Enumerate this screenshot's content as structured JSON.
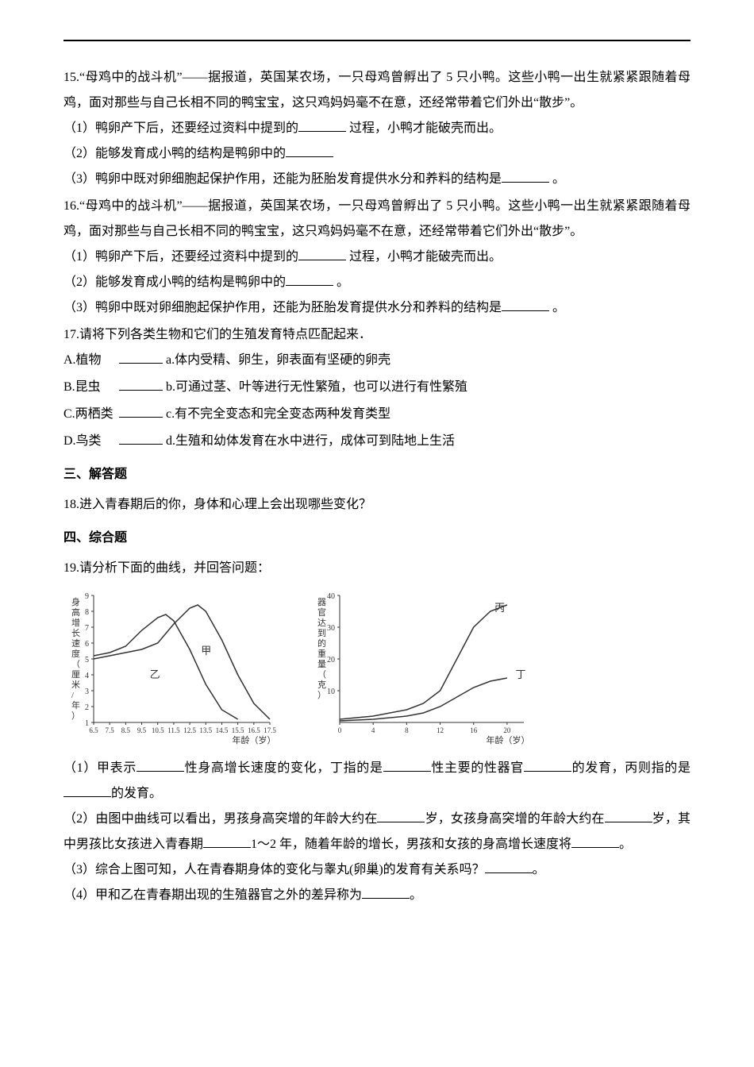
{
  "q15": {
    "num": "15.",
    "stem": "“母鸡中的战斗机”——据报道，英国某农场，一只母鸡曾孵出了 5 只小鸭。这些小鸭一出生就紧紧跟随着母鸡，面对那些与自己长相不同的鸭宝宝，这只鸡妈妈毫不在意，还经常带着它们外出“散步”。",
    "sub1_a": "（1）鸭卵产下后，还要经过资料中提到的",
    "sub1_b": " 过程，小鸭才能破壳而出。",
    "sub2_a": "（2）能够发育成小鸭的结构是鸭卵中的",
    "sub3_a": "（3）鸭卵中既对卵细胞起保护作用，还能为胚胎发育提供水分和养料的结构是",
    "sub3_b": " 。"
  },
  "q16": {
    "num": "16.",
    "stem": "“母鸡中的战斗机”——据报道，英国某农场，一只母鸡曾孵出了 5 只小鸭。这些小鸭一出生就紧紧跟随着母鸡，面对那些与自己长相不同的鸭宝宝，这只鸡妈妈毫不在意，还经常带着它们外出“散步”。",
    "sub1_a": "（1）鸭卵产下后，还要经过资料中提到的",
    "sub1_b": " 过程，小鸭才能破壳而出。",
    "sub2_a": "（2）能够发育成小鸭的结构是鸭卵中的",
    "sub2_b": " 。",
    "sub3_a": "（3）鸭卵中既对卵细胞起保护作用，还能为胚胎发育提供水分和养料的结构是",
    "sub3_b": " 。"
  },
  "q17": {
    "num": "17.",
    "stem": "请将下列各类生物和它们的生殖发育特点匹配起来．",
    "opts": [
      {
        "letter": "A.植物",
        "match": "a.体内受精、卵生，卵表面有坚硬的卵壳"
      },
      {
        "letter": "B.昆虫",
        "match": "b.可通过茎、叶等进行无性繁殖，也可以进行有性繁殖"
      },
      {
        "letter": "C.两栖类",
        "match": "c.有不完全变态和完全变态两种发育类型"
      },
      {
        "letter": "D.鸟类",
        "match": "d.生殖和幼体发育在水中进行，成体可到陆地上生活"
      }
    ]
  },
  "section3": "三、解答题",
  "q18": {
    "num": "18.",
    "stem": "进入青春期后的你，身体和心理上会出现哪些变化？"
  },
  "section4": "四、综合题",
  "q19": {
    "num": "19.",
    "stem": "请分析下面的曲线，并回答问题：",
    "chart1": {
      "type": "line",
      "ylabel": "身高增长速度（厘米/年）",
      "xlabel": "年龄（岁）",
      "ylim": [
        1,
        9
      ],
      "yticks": [
        1,
        2,
        3,
        4,
        5,
        6,
        7,
        8,
        9
      ],
      "xlim": [
        6.5,
        17.5
      ],
      "xticks": [
        6.5,
        7.5,
        8.5,
        9.5,
        10.5,
        11.5,
        12.5,
        13.5,
        14.5,
        15.5,
        16.5,
        17.5
      ],
      "series": [
        {
          "label": "甲",
          "label_pos": {
            "x": 13.2,
            "y": 5.3
          },
          "data": [
            {
              "x": 6.5,
              "y": 5.0
            },
            {
              "x": 7.5,
              "y": 5.2
            },
            {
              "x": 8.5,
              "y": 5.4
            },
            {
              "x": 9.5,
              "y": 5.6
            },
            {
              "x": 10.5,
              "y": 6.0
            },
            {
              "x": 11.5,
              "y": 7.2
            },
            {
              "x": 12.5,
              "y": 8.2
            },
            {
              "x": 13.0,
              "y": 8.4
            },
            {
              "x": 13.5,
              "y": 8.0
            },
            {
              "x": 14.5,
              "y": 6.2
            },
            {
              "x": 15.5,
              "y": 4.0
            },
            {
              "x": 16.5,
              "y": 2.2
            },
            {
              "x": 17.5,
              "y": 1.2
            }
          ]
        },
        {
          "label": "乙",
          "label_pos": {
            "x": 10.0,
            "y": 3.8
          },
          "data": [
            {
              "x": 6.5,
              "y": 5.2
            },
            {
              "x": 7.5,
              "y": 5.4
            },
            {
              "x": 8.5,
              "y": 5.8
            },
            {
              "x": 9.5,
              "y": 6.8
            },
            {
              "x": 10.5,
              "y": 7.6
            },
            {
              "x": 11.0,
              "y": 7.8
            },
            {
              "x": 11.5,
              "y": 7.4
            },
            {
              "x": 12.5,
              "y": 5.6
            },
            {
              "x": 13.5,
              "y": 3.4
            },
            {
              "x": 14.5,
              "y": 1.8
            },
            {
              "x": 15.5,
              "y": 1.2
            }
          ]
        }
      ],
      "line_color": "#333333",
      "line_width": 1.5,
      "background": "#ffffff"
    },
    "chart2": {
      "type": "line",
      "ylabel": "器官达到的重量（克）",
      "xlabel": "年龄（岁）",
      "ylim": [
        0,
        40
      ],
      "yticks": [
        10,
        20,
        30,
        40
      ],
      "xlim": [
        0,
        22
      ],
      "xticks": [
        0,
        4,
        8,
        12,
        16,
        20
      ],
      "series": [
        {
          "label": "丙",
          "label_pos": {
            "x": 18.5,
            "y": 35
          },
          "data": [
            {
              "x": 0,
              "y": 1
            },
            {
              "x": 4,
              "y": 2
            },
            {
              "x": 8,
              "y": 4
            },
            {
              "x": 10,
              "y": 6
            },
            {
              "x": 12,
              "y": 10
            },
            {
              "x": 14,
              "y": 20
            },
            {
              "x": 16,
              "y": 30
            },
            {
              "x": 18,
              "y": 35
            },
            {
              "x": 20,
              "y": 37
            }
          ]
        },
        {
          "label": "丁",
          "label_pos": {
            "x": 21,
            "y": 14
          },
          "data": [
            {
              "x": 0,
              "y": 0.5
            },
            {
              "x": 4,
              "y": 1
            },
            {
              "x": 8,
              "y": 2
            },
            {
              "x": 10,
              "y": 3
            },
            {
              "x": 12,
              "y": 5
            },
            {
              "x": 14,
              "y": 8
            },
            {
              "x": 16,
              "y": 11
            },
            {
              "x": 18,
              "y": 13
            },
            {
              "x": 20,
              "y": 14
            }
          ]
        }
      ],
      "line_color": "#333333",
      "line_width": 1.5,
      "background": "#ffffff"
    },
    "sub1_a": "（1）甲表示",
    "sub1_b": "性身高增长速度的变化，丁指的是",
    "sub1_c": "性主要的性器官",
    "sub1_d": "的发育，丙则指的是",
    "sub1_e": "的发育。",
    "sub2_a": "（2）由图中曲线可以看出，男孩身高突增的年龄大约在",
    "sub2_b": "岁，女孩身高突增的年龄大约在",
    "sub2_c": "岁，其中男孩比女孩进入青春期",
    "sub2_d": "1～2 年，随着年龄的增长，男孩和女孩的身高增长速度将",
    "sub2_e": "。",
    "sub3_a": "（3）综合上图可知，人在青春期身体的变化与睾丸(卵巢)的发育有关系吗？",
    "sub3_b": "。",
    "sub4_a": "（4）甲和乙在青春期出现的生殖器官之外的差异称为",
    "sub4_b": "。"
  }
}
